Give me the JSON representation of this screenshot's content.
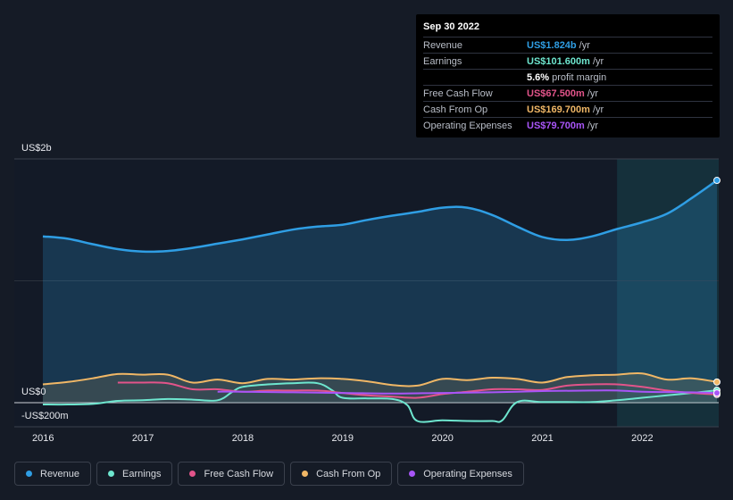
{
  "tooltip": {
    "date": "Sep 30 2022",
    "rows": [
      {
        "label": "Revenue",
        "value": "US$1.824b",
        "unit": "/yr",
        "color": "#2f9ee4"
      },
      {
        "label": "Earnings",
        "value": "US$101.600m",
        "unit": "/yr",
        "color": "#6ee6cf"
      },
      {
        "label": "",
        "value": "5.6%",
        "unit": "profit margin",
        "color": "#ffffff"
      },
      {
        "label": "Free Cash Flow",
        "value": "US$67.500m",
        "unit": "/yr",
        "color": "#e2548a"
      },
      {
        "label": "Cash From Op",
        "value": "US$169.700m",
        "unit": "/yr",
        "color": "#f0b766"
      },
      {
        "label": "Operating Expenses",
        "value": "US$79.700m",
        "unit": "/yr",
        "color": "#a855f7"
      }
    ]
  },
  "legend": [
    {
      "label": "Revenue",
      "color": "#2f9ee4"
    },
    {
      "label": "Earnings",
      "color": "#6ee6cf"
    },
    {
      "label": "Free Cash Flow",
      "color": "#e2548a"
    },
    {
      "label": "Cash From Op",
      "color": "#f0b766"
    },
    {
      "label": "Operating Expenses",
      "color": "#a855f7"
    }
  ],
  "chart_data": {
    "type": "area",
    "y_tick_labels": {
      "top": "US$2b",
      "zero": "US$0",
      "bottom": "-US$200m"
    },
    "ylim": [
      -200,
      2000
    ],
    "xlim": [
      2016,
      2022.75
    ],
    "x_tick_labels": [
      "2016",
      "2017",
      "2018",
      "2019",
      "2020",
      "2021",
      "2022"
    ],
    "x_ticks": [
      2016,
      2017,
      2018,
      2019,
      2020,
      2021,
      2022
    ],
    "highlight_from": 2021.75,
    "series": [
      {
        "name": "Revenue",
        "color": "#2f9ee4",
        "fill": true,
        "x": [
          2016,
          2016.25,
          2016.5,
          2016.75,
          2017,
          2017.25,
          2017.5,
          2017.75,
          2018,
          2018.25,
          2018.5,
          2018.75,
          2019,
          2019.25,
          2019.5,
          2019.75,
          2020,
          2020.25,
          2020.5,
          2020.75,
          2021,
          2021.25,
          2021.5,
          2021.75,
          2022,
          2022.25,
          2022.5,
          2022.75
        ],
        "values": [
          1365,
          1345,
          1300,
          1260,
          1240,
          1245,
          1270,
          1305,
          1340,
          1380,
          1420,
          1445,
          1460,
          1500,
          1535,
          1565,
          1600,
          1600,
          1540,
          1445,
          1360,
          1335,
          1365,
          1425,
          1480,
          1550,
          1680,
          1824
        ]
      },
      {
        "name": "Earnings",
        "color": "#6ee6cf",
        "fill": false,
        "x": [
          2016,
          2016.25,
          2016.5,
          2016.75,
          2017,
          2017.25,
          2017.5,
          2017.75,
          2017.9,
          2018,
          2018.25,
          2018.5,
          2018.75,
          2018.9,
          2019,
          2019.25,
          2019.5,
          2019.65,
          2019.75,
          2020,
          2020.25,
          2020.5,
          2020.6,
          2020.75,
          2021,
          2021.25,
          2021.5,
          2021.75,
          2022,
          2022.25,
          2022.5,
          2022.75
        ],
        "values": [
          -15,
          -15,
          -10,
          15,
          20,
          30,
          25,
          20,
          90,
          130,
          150,
          160,
          160,
          100,
          40,
          35,
          30,
          -20,
          -150,
          -145,
          -150,
          -150,
          -145,
          5,
          5,
          5,
          5,
          20,
          40,
          60,
          80,
          101.6
        ]
      },
      {
        "name": "Free Cash Flow",
        "color": "#e2548a",
        "fill": false,
        "x": [
          2016.75,
          2017,
          2017.25,
          2017.5,
          2017.75,
          2018,
          2018.25,
          2018.5,
          2018.75,
          2019,
          2019.25,
          2019.5,
          2019.75,
          2020,
          2020.25,
          2020.5,
          2020.75,
          2021,
          2021.25,
          2021.5,
          2021.75,
          2022,
          2022.25,
          2022.5,
          2022.75
        ],
        "values": [
          165,
          165,
          160,
          110,
          110,
          90,
          100,
          100,
          100,
          80,
          60,
          50,
          40,
          70,
          90,
          110,
          110,
          105,
          140,
          150,
          150,
          130,
          100,
          80,
          67.5
        ]
      },
      {
        "name": "Cash From Op",
        "color": "#f0b766",
        "fill": true,
        "x": [
          2016,
          2016.25,
          2016.5,
          2016.75,
          2017,
          2017.25,
          2017.5,
          2017.75,
          2018,
          2018.25,
          2018.5,
          2018.75,
          2019,
          2019.25,
          2019.5,
          2019.75,
          2020,
          2020.25,
          2020.5,
          2020.75,
          2021,
          2021.25,
          2021.5,
          2021.75,
          2022,
          2022.25,
          2022.5,
          2022.75
        ],
        "values": [
          150,
          170,
          200,
          235,
          230,
          230,
          165,
          190,
          160,
          195,
          190,
          200,
          195,
          175,
          145,
          140,
          195,
          185,
          205,
          195,
          165,
          210,
          225,
          230,
          240,
          190,
          200,
          169.7
        ]
      },
      {
        "name": "Operating Expenses",
        "color": "#a855f7",
        "fill": false,
        "x": [
          2017.75,
          2018,
          2018.5,
          2019,
          2019.5,
          2020,
          2020.5,
          2021,
          2021.5,
          2021.75,
          2022,
          2022.5,
          2022.75
        ],
        "values": [
          90,
          90,
          85,
          80,
          75,
          80,
          85,
          95,
          100,
          100,
          90,
          85,
          79.7
        ]
      }
    ]
  }
}
